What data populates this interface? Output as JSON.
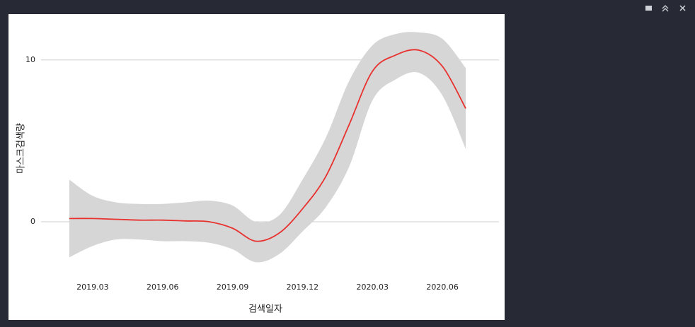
{
  "chart_data": {
    "type": "smooth",
    "x_label": "검색일자",
    "y_label": "마스크검색량",
    "x": [
      "2019.02",
      "2019.03",
      "2019.04",
      "2019.05",
      "2019.06",
      "2019.07",
      "2019.08",
      "2019.09",
      "2019.10",
      "2019.11",
      "2019.12",
      "2020.01",
      "2020.02",
      "2020.03",
      "2020.04",
      "2020.05",
      "2020.06",
      "2020.07"
    ],
    "values": [
      0.2,
      0.2,
      0.15,
      0.1,
      0.1,
      0.05,
      0,
      -0.4,
      -1.2,
      -0.7,
      0.8,
      2.8,
      6.0,
      9.3,
      10.3,
      10.6,
      9.6,
      7.0
    ],
    "band_upper": [
      2.6,
      1.6,
      1.2,
      1.1,
      1.1,
      1.2,
      1.3,
      1.0,
      0.0,
      0.4,
      2.6,
      5.2,
      8.7,
      10.9,
      11.6,
      11.7,
      11.3,
      9.5
    ],
    "band_lower": [
      -2.2,
      -1.5,
      -1.1,
      -1.1,
      -1.2,
      -1.2,
      -1.3,
      -1.7,
      -2.5,
      -2.0,
      -0.6,
      0.9,
      3.4,
      7.5,
      8.8,
      9.2,
      7.8,
      4.5
    ],
    "color": "#e8322f",
    "band_color": "#d6d6d6",
    "xlim": [
      "2019.01",
      "2020.08"
    ],
    "xticks": [
      "2019.03",
      "2019.06",
      "2019.09",
      "2019.12",
      "2020.03",
      "2020.06"
    ],
    "ylim": [
      -3.1,
      12
    ],
    "yticks": [
      0,
      10
    ],
    "grid": true
  }
}
